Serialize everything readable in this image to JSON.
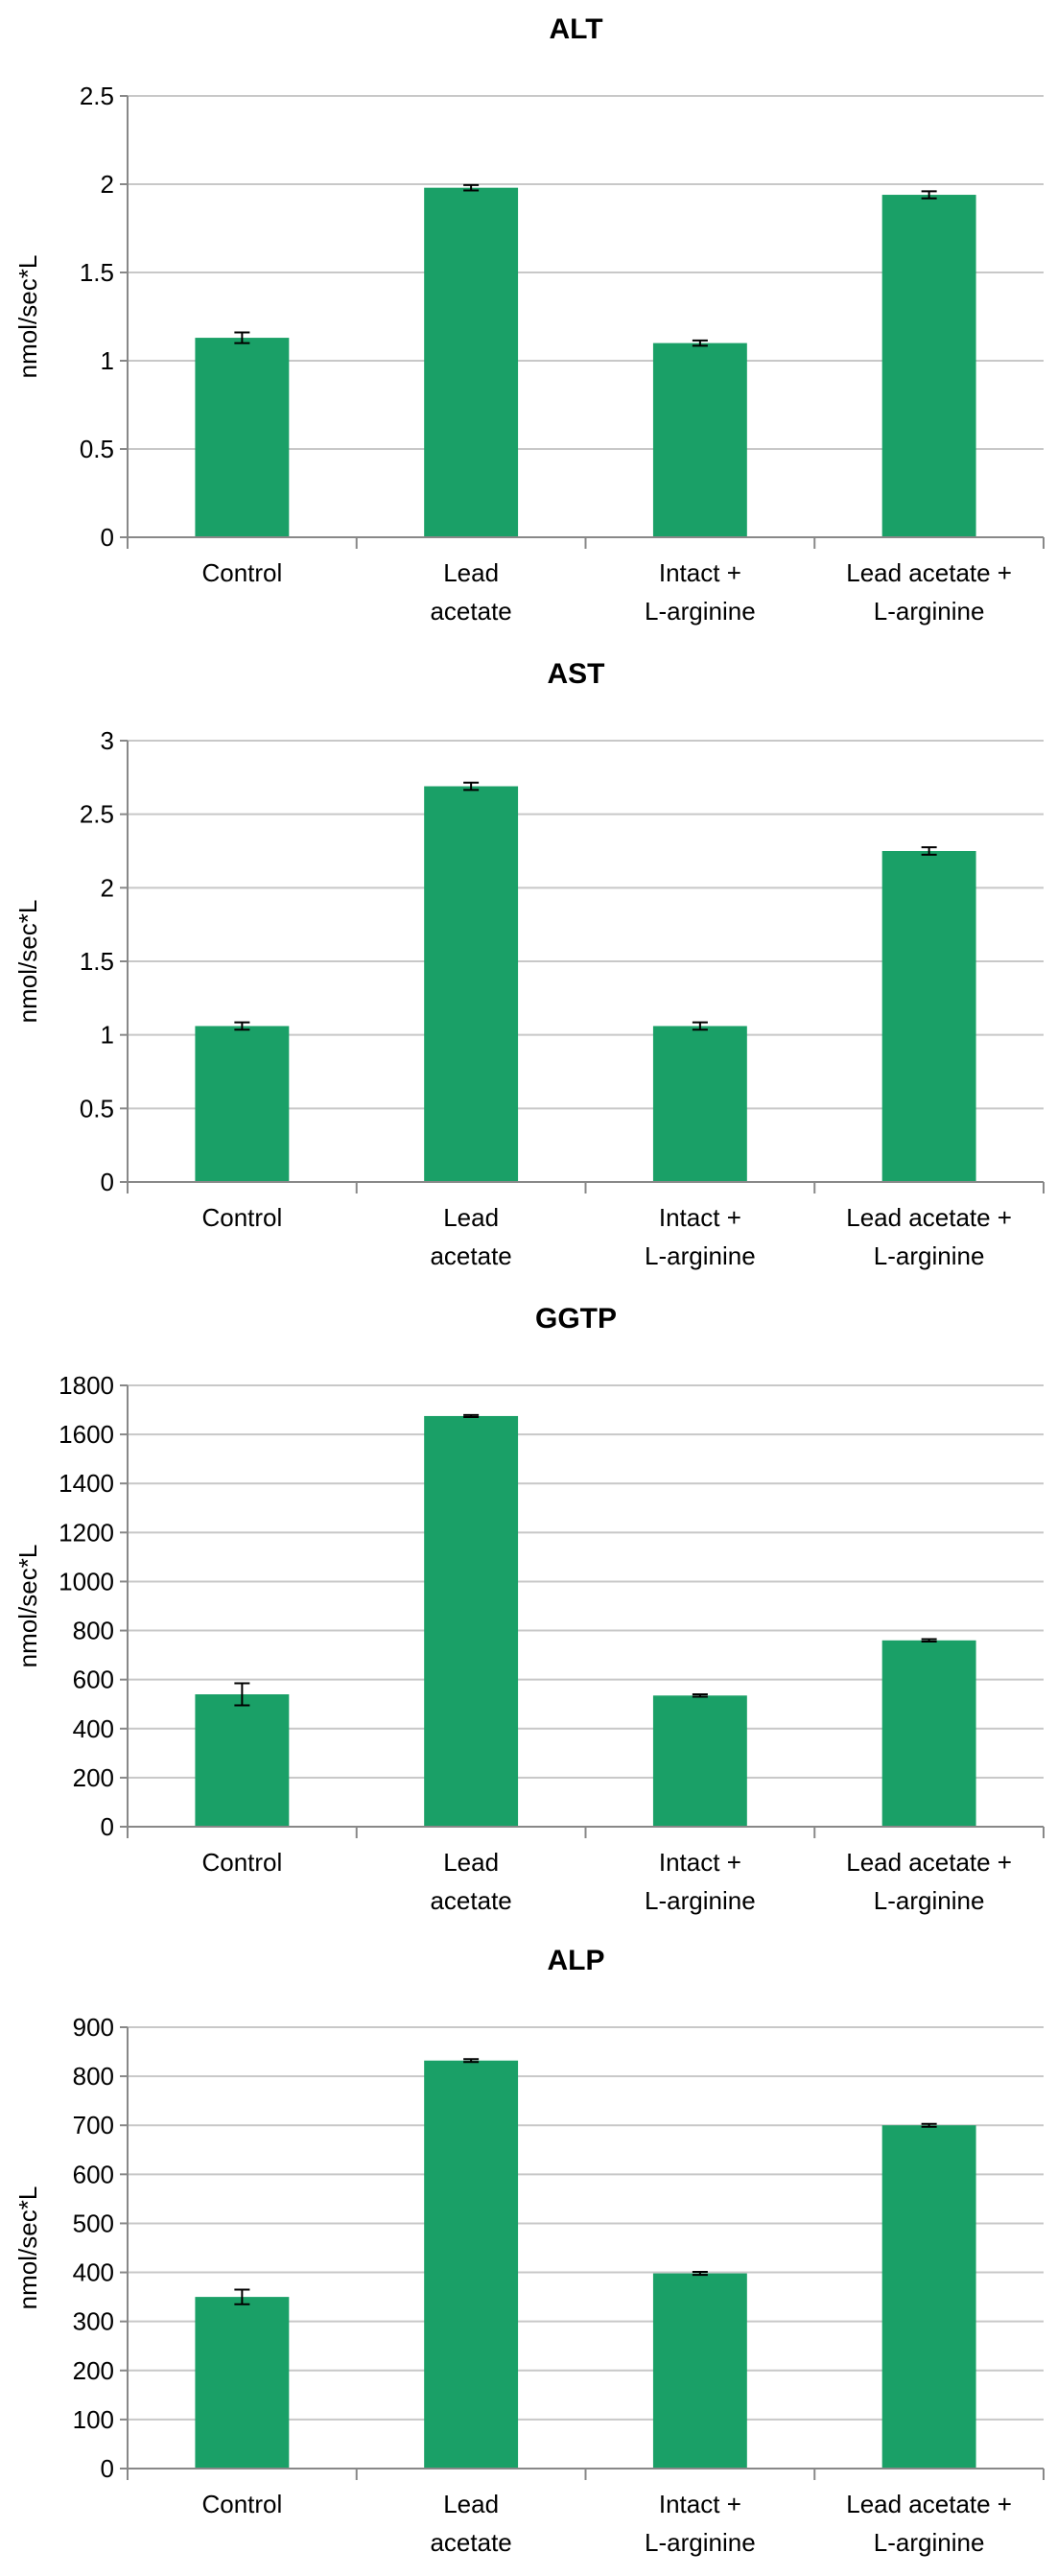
{
  "chart_data": [
    {
      "type": "bar",
      "title": "ALT",
      "ylabel": "nmol/sec*L",
      "categories": [
        [
          "Control"
        ],
        [
          "Lead",
          "acetate"
        ],
        [
          "Intact +",
          "L-arginine"
        ],
        [
          "Lead acetate +",
          "L-arginine"
        ]
      ],
      "values": [
        1.13,
        1.98,
        1.1,
        1.94
      ],
      "errors": [
        0.03,
        0.015,
        0.015,
        0.02
      ],
      "ylim": [
        0,
        2.5
      ],
      "yticks": [
        "0",
        "0.5",
        "1",
        "1.5",
        "2",
        "2.5"
      ],
      "color": "#1aa067",
      "grid": true
    },
    {
      "type": "bar",
      "title": "AST",
      "ylabel": "nmol/sec*L",
      "categories": [
        [
          "Control"
        ],
        [
          "Lead",
          "acetate"
        ],
        [
          "Intact +",
          "L-arginine"
        ],
        [
          "Lead acetate +",
          "L-arginine"
        ]
      ],
      "values": [
        1.06,
        2.69,
        1.06,
        2.25
      ],
      "errors": [
        0.025,
        0.025,
        0.025,
        0.025
      ],
      "ylim": [
        0,
        3
      ],
      "yticks": [
        "0",
        "0.5",
        "1",
        "1.5",
        "2",
        "2.5",
        "3"
      ],
      "color": "#1aa067",
      "grid": true
    },
    {
      "type": "bar",
      "title": "GGTP",
      "ylabel": "nmol/sec*L",
      "categories": [
        [
          "Control"
        ],
        [
          "Lead",
          "acetate"
        ],
        [
          "Intact +",
          "L-arginine"
        ],
        [
          "Lead acetate +",
          "L-arginine"
        ]
      ],
      "values": [
        540,
        1675,
        535,
        760
      ],
      "errors": [
        45,
        4,
        5,
        5
      ],
      "ylim": [
        0,
        1800
      ],
      "yticks": [
        "0",
        "200",
        "400",
        "600",
        "800",
        "1000",
        "1200",
        "1400",
        "1600",
        "1800"
      ],
      "color": "#1aa067",
      "grid": true
    },
    {
      "type": "bar",
      "title": "ALP",
      "ylabel": "nmol/sec*L",
      "categories": [
        [
          "Control"
        ],
        [
          "Lead",
          "acetate"
        ],
        [
          "Intact +",
          "L-arginine"
        ],
        [
          "Lead acetate +",
          "L-arginine"
        ]
      ],
      "values": [
        350,
        832,
        398,
        700
      ],
      "errors": [
        15,
        3,
        3,
        3
      ],
      "ylim": [
        0,
        900
      ],
      "yticks": [
        "0",
        "100",
        "200",
        "300",
        "400",
        "500",
        "600",
        "700",
        "800",
        "900"
      ],
      "color": "#1aa067",
      "grid": true
    }
  ]
}
